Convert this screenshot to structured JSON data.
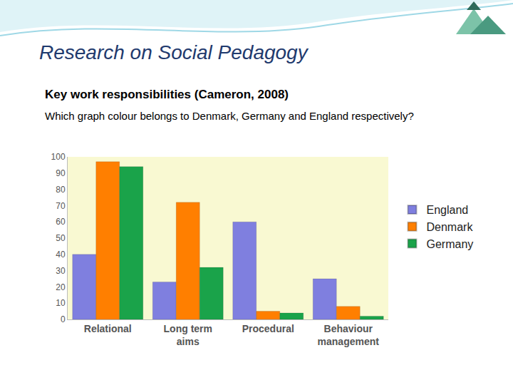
{
  "slide": {
    "heading": "Research on Social Pedagogy",
    "subtitle": "Key work responsibilities (Cameron, 2008)",
    "question": "Which graph colour belongs to Denmark, Germany and England respectively?"
  },
  "chart_data": {
    "type": "bar",
    "categories": [
      "Relational",
      "Long term aims",
      "Procedural",
      "Behaviour management"
    ],
    "series": [
      {
        "name": "England",
        "color": "#7f7fdf",
        "values": [
          40,
          23,
          60,
          25
        ]
      },
      {
        "name": "Denmark",
        "color": "#ff7f00",
        "values": [
          97,
          72,
          5,
          8
        ]
      },
      {
        "name": "Germany",
        "color": "#1aa34a",
        "values": [
          94,
          32,
          4,
          2
        ]
      }
    ],
    "ylim": [
      0,
      100
    ],
    "yticks": [
      0,
      10,
      20,
      30,
      40,
      50,
      60,
      70,
      80,
      90,
      100
    ],
    "grid": false,
    "legend": "right"
  }
}
